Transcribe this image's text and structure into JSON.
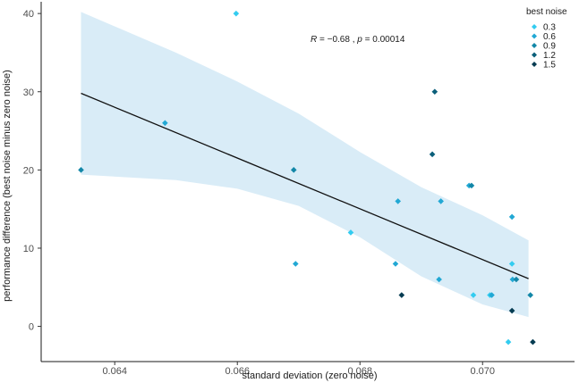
{
  "chart_data": {
    "type": "scatter",
    "title": "",
    "xlabel": "standard deviation (zero noise)",
    "ylabel": "performance difference (best noise minus zero noise)",
    "xlim": [
      0.0628,
      0.0715
    ],
    "ylim": [
      -4.5,
      41.5
    ],
    "xticks": [
      0.064,
      0.066,
      0.068,
      0.07
    ],
    "xtick_labels": [
      "0.064",
      "0.066",
      "0.068",
      "0.070"
    ],
    "yticks": [
      0,
      10,
      20,
      30,
      40
    ],
    "ytick_labels": [
      "0",
      "10",
      "20",
      "30",
      "40"
    ],
    "grid": false,
    "legend": {
      "title": "best noise",
      "placement": "top-right",
      "entries": [
        {
          "label": "0.3",
          "color": "#33ccf0"
        },
        {
          "label": "0.6",
          "color": "#22a8d4"
        },
        {
          "label": "0.9",
          "color": "#1387a8"
        },
        {
          "label": "1.2",
          "color": "#0b5f7a"
        },
        {
          "label": "1.5",
          "color": "#063c52"
        }
      ]
    },
    "annotation": {
      "r_label": "R",
      "r_value": " = −0.68 , ",
      "p_label": "p",
      "p_value": " = 0.00014"
    },
    "regression": {
      "x": [
        0.06345,
        0.07075
      ],
      "y": [
        29.8,
        6.1
      ],
      "ci_upper": [
        [
          0.06345,
          40.2
        ],
        [
          0.065,
          35.0
        ],
        [
          0.066,
          31.3
        ],
        [
          0.067,
          27.2
        ],
        [
          0.068,
          22.3
        ],
        [
          0.069,
          17.8
        ],
        [
          0.07,
          14.2
        ],
        [
          0.07075,
          11.0
        ]
      ],
      "ci_lower": [
        [
          0.06345,
          19.4
        ],
        [
          0.065,
          18.7
        ],
        [
          0.066,
          17.6
        ],
        [
          0.067,
          15.4
        ],
        [
          0.068,
          11.4
        ],
        [
          0.069,
          6.4
        ],
        [
          0.07,
          2.8
        ],
        [
          0.07075,
          1.2
        ]
      ],
      "line_color": "#111111",
      "band_color": "#d9ecf7"
    },
    "series": [
      {
        "name": "0.3",
        "color": "#33ccf0",
        "points": [
          [
            0.06598,
            40
          ],
          [
            0.06785,
            12
          ],
          [
            0.06985,
            4
          ],
          [
            0.07012,
            4
          ],
          [
            0.07048,
            8
          ],
          [
            0.07042,
            -2
          ]
        ]
      },
      {
        "name": "0.6",
        "color": "#22a8d4",
        "points": [
          [
            0.06482,
            26
          ],
          [
            0.06862,
            16
          ],
          [
            0.06858,
            8
          ],
          [
            0.06929,
            6
          ],
          [
            0.06932,
            16
          ],
          [
            0.06978,
            18
          ],
          [
            0.07015,
            4
          ],
          [
            0.07048,
            14
          ],
          [
            0.07049,
            6
          ],
          [
            0.06695,
            8
          ]
        ]
      },
      {
        "name": "0.9",
        "color": "#1387a8",
        "points": [
          [
            0.06345,
            20
          ],
          [
            0.06692,
            20
          ],
          [
            0.06982,
            18
          ],
          [
            0.07055,
            6
          ],
          [
            0.07078,
            4
          ]
        ]
      },
      {
        "name": "1.2",
        "color": "#0b5f7a",
        "points": [
          [
            0.06922,
            30
          ],
          [
            0.06918,
            22
          ]
        ]
      },
      {
        "name": "1.5",
        "color": "#063c52",
        "points": [
          [
            0.06868,
            4
          ],
          [
            0.07048,
            2
          ],
          [
            0.07082,
            -2
          ]
        ]
      }
    ]
  }
}
